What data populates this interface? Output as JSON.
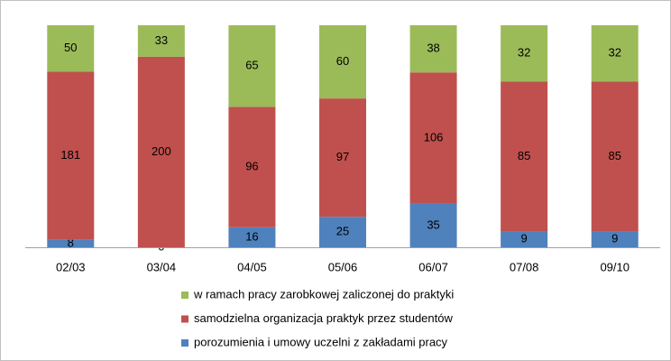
{
  "chart_data": {
    "type": "bar",
    "stacking": "percent",
    "categories": [
      "02/03",
      "03/04",
      "04/05",
      "05/06",
      "06/07",
      "07/08",
      "09/10"
    ],
    "series": [
      {
        "name": "porozumienia  i umowy uczelni z zakładami pracy",
        "color": "#4f81bd",
        "values": [
          8,
          0,
          16,
          25,
          35,
          9,
          9
        ]
      },
      {
        "name": "samodzielna organizacja praktyk przez studentów",
        "color": "#c0504d",
        "values": [
          181,
          200,
          96,
          97,
          106,
          85,
          85
        ]
      },
      {
        "name": "w ramach pracy zarobkowej zaliczonej do praktyki",
        "color": "#9bbb59",
        "values": [
          50,
          33,
          65,
          60,
          38,
          32,
          32
        ]
      }
    ],
    "legend": "bottom"
  }
}
